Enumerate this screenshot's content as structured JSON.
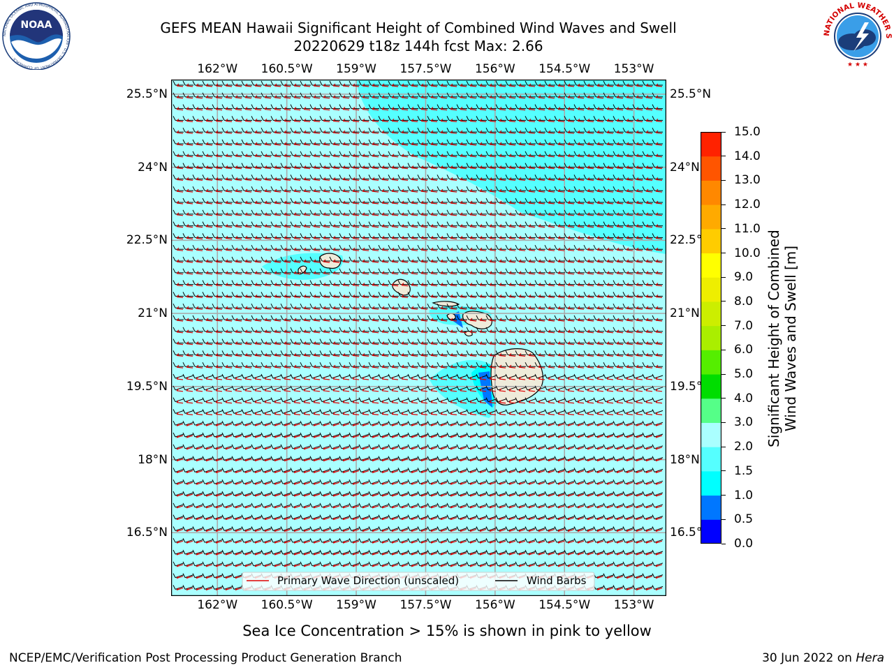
{
  "title": {
    "line1": "GEFS MEAN Hawaii Significant Height of Combined Wind Waves and Swell",
    "line2": "20220629 t18z 144h fcst   Max: 2.66"
  },
  "map": {
    "lon_labels": [
      "162°W",
      "160.5°W",
      "159°W",
      "157.5°W",
      "156°W",
      "154.5°W",
      "153°W"
    ],
    "lat_labels": [
      "25.5°N",
      "24°N",
      "22.5°N",
      "21°N",
      "19.5°N",
      "18°N",
      "16.5°N"
    ],
    "lon_range": [
      -163.0,
      -152.3
    ],
    "lat_range": [
      15.2,
      25.8
    ],
    "ocean_color": "#aaffff",
    "land_color": "#efebda",
    "gridline_color": "#aaaaaa"
  },
  "legend": {
    "wave_dir_label": "Primary Wave Direction (unscaled)",
    "barb_label": "Wind Barbs",
    "wave_dir_color": "#dd0000",
    "barb_color": "#000000"
  },
  "colorbar": {
    "title_line1": "Significant Height of Combined",
    "title_line2": "Wind Waves and Swell [m]",
    "ticks": [
      "0.0",
      "0.5",
      "1.0",
      "1.5",
      "2.0",
      "3.0",
      "4.0",
      "5.0",
      "6.0",
      "7.0",
      "8.0",
      "9.0",
      "10.0",
      "11.0",
      "12.0",
      "13.0",
      "14.0",
      "15.0"
    ],
    "colors": [
      "#0000ff",
      "#0077ff",
      "#00ffff",
      "#55ffff",
      "#aaffff",
      "#55ff88",
      "#00dd00",
      "#55ee00",
      "#aaee00",
      "#ccee00",
      "#eeee00",
      "#ffff00",
      "#ffcc00",
      "#ffaa00",
      "#ff8800",
      "#ff5500",
      "#ff2200"
    ]
  },
  "note": "Sea Ice Concentration > 15% is shown in pink to yellow",
  "footer": {
    "left": "NCEP/EMC/Verification Post Processing Product Generation Branch",
    "right_prefix": "30 Jun 2022 on ",
    "right_host": "Hera"
  },
  "logos": {
    "noaa_text": "NOAA",
    "noaa_ring": "NATIONAL OCEANIC AND ATMOSPHERIC ADMINISTRATION · U.S. DEPARTMENT OF COMMERCE ·",
    "nws_ring": "NATIONAL WEATHER SERVICE"
  }
}
